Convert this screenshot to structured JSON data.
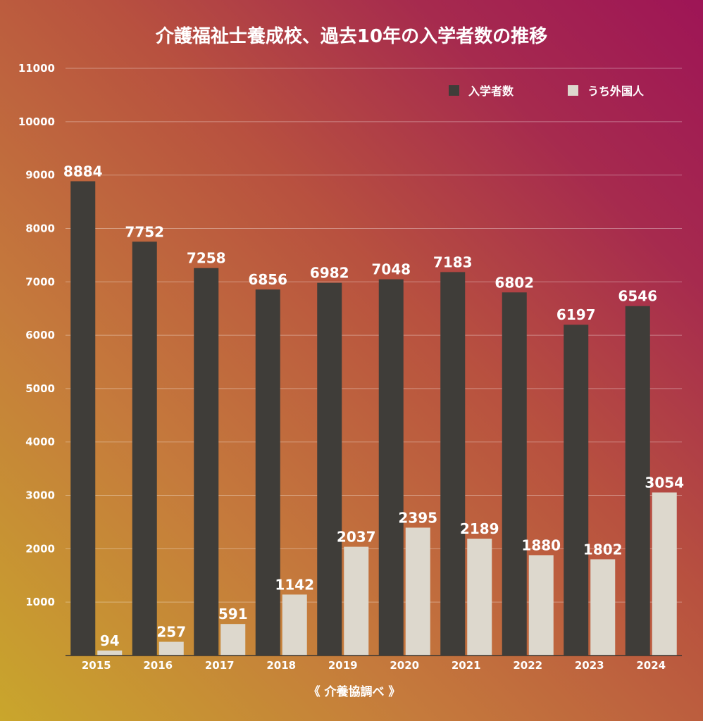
{
  "chart_data": {
    "type": "bar",
    "title": "介護福祉士養成校、過去10年の入学者数の推移",
    "categories": [
      "2015",
      "2016",
      "2017",
      "2018",
      "2019",
      "2020",
      "2021",
      "2022",
      "2023",
      "2024"
    ],
    "series": [
      {
        "name": "入学者数",
        "color": "#3f3d39",
        "values": [
          8884,
          7752,
          7258,
          6856,
          6982,
          7048,
          7183,
          6802,
          6197,
          6546
        ]
      },
      {
        "name": "うち外国人",
        "color": "#ddd8cd",
        "values": [
          94,
          257,
          591,
          1142,
          2037,
          2395,
          2189,
          1880,
          1802,
          3054
        ]
      }
    ],
    "ylim": [
      0,
      11000
    ],
    "yticks": [
      1000,
      2000,
      3000,
      4000,
      5000,
      6000,
      7000,
      8000,
      9000,
      10000,
      11000
    ],
    "grid": true,
    "legend_position": "top-right",
    "data_labels": true,
    "source": "《 介養協調べ 》"
  }
}
